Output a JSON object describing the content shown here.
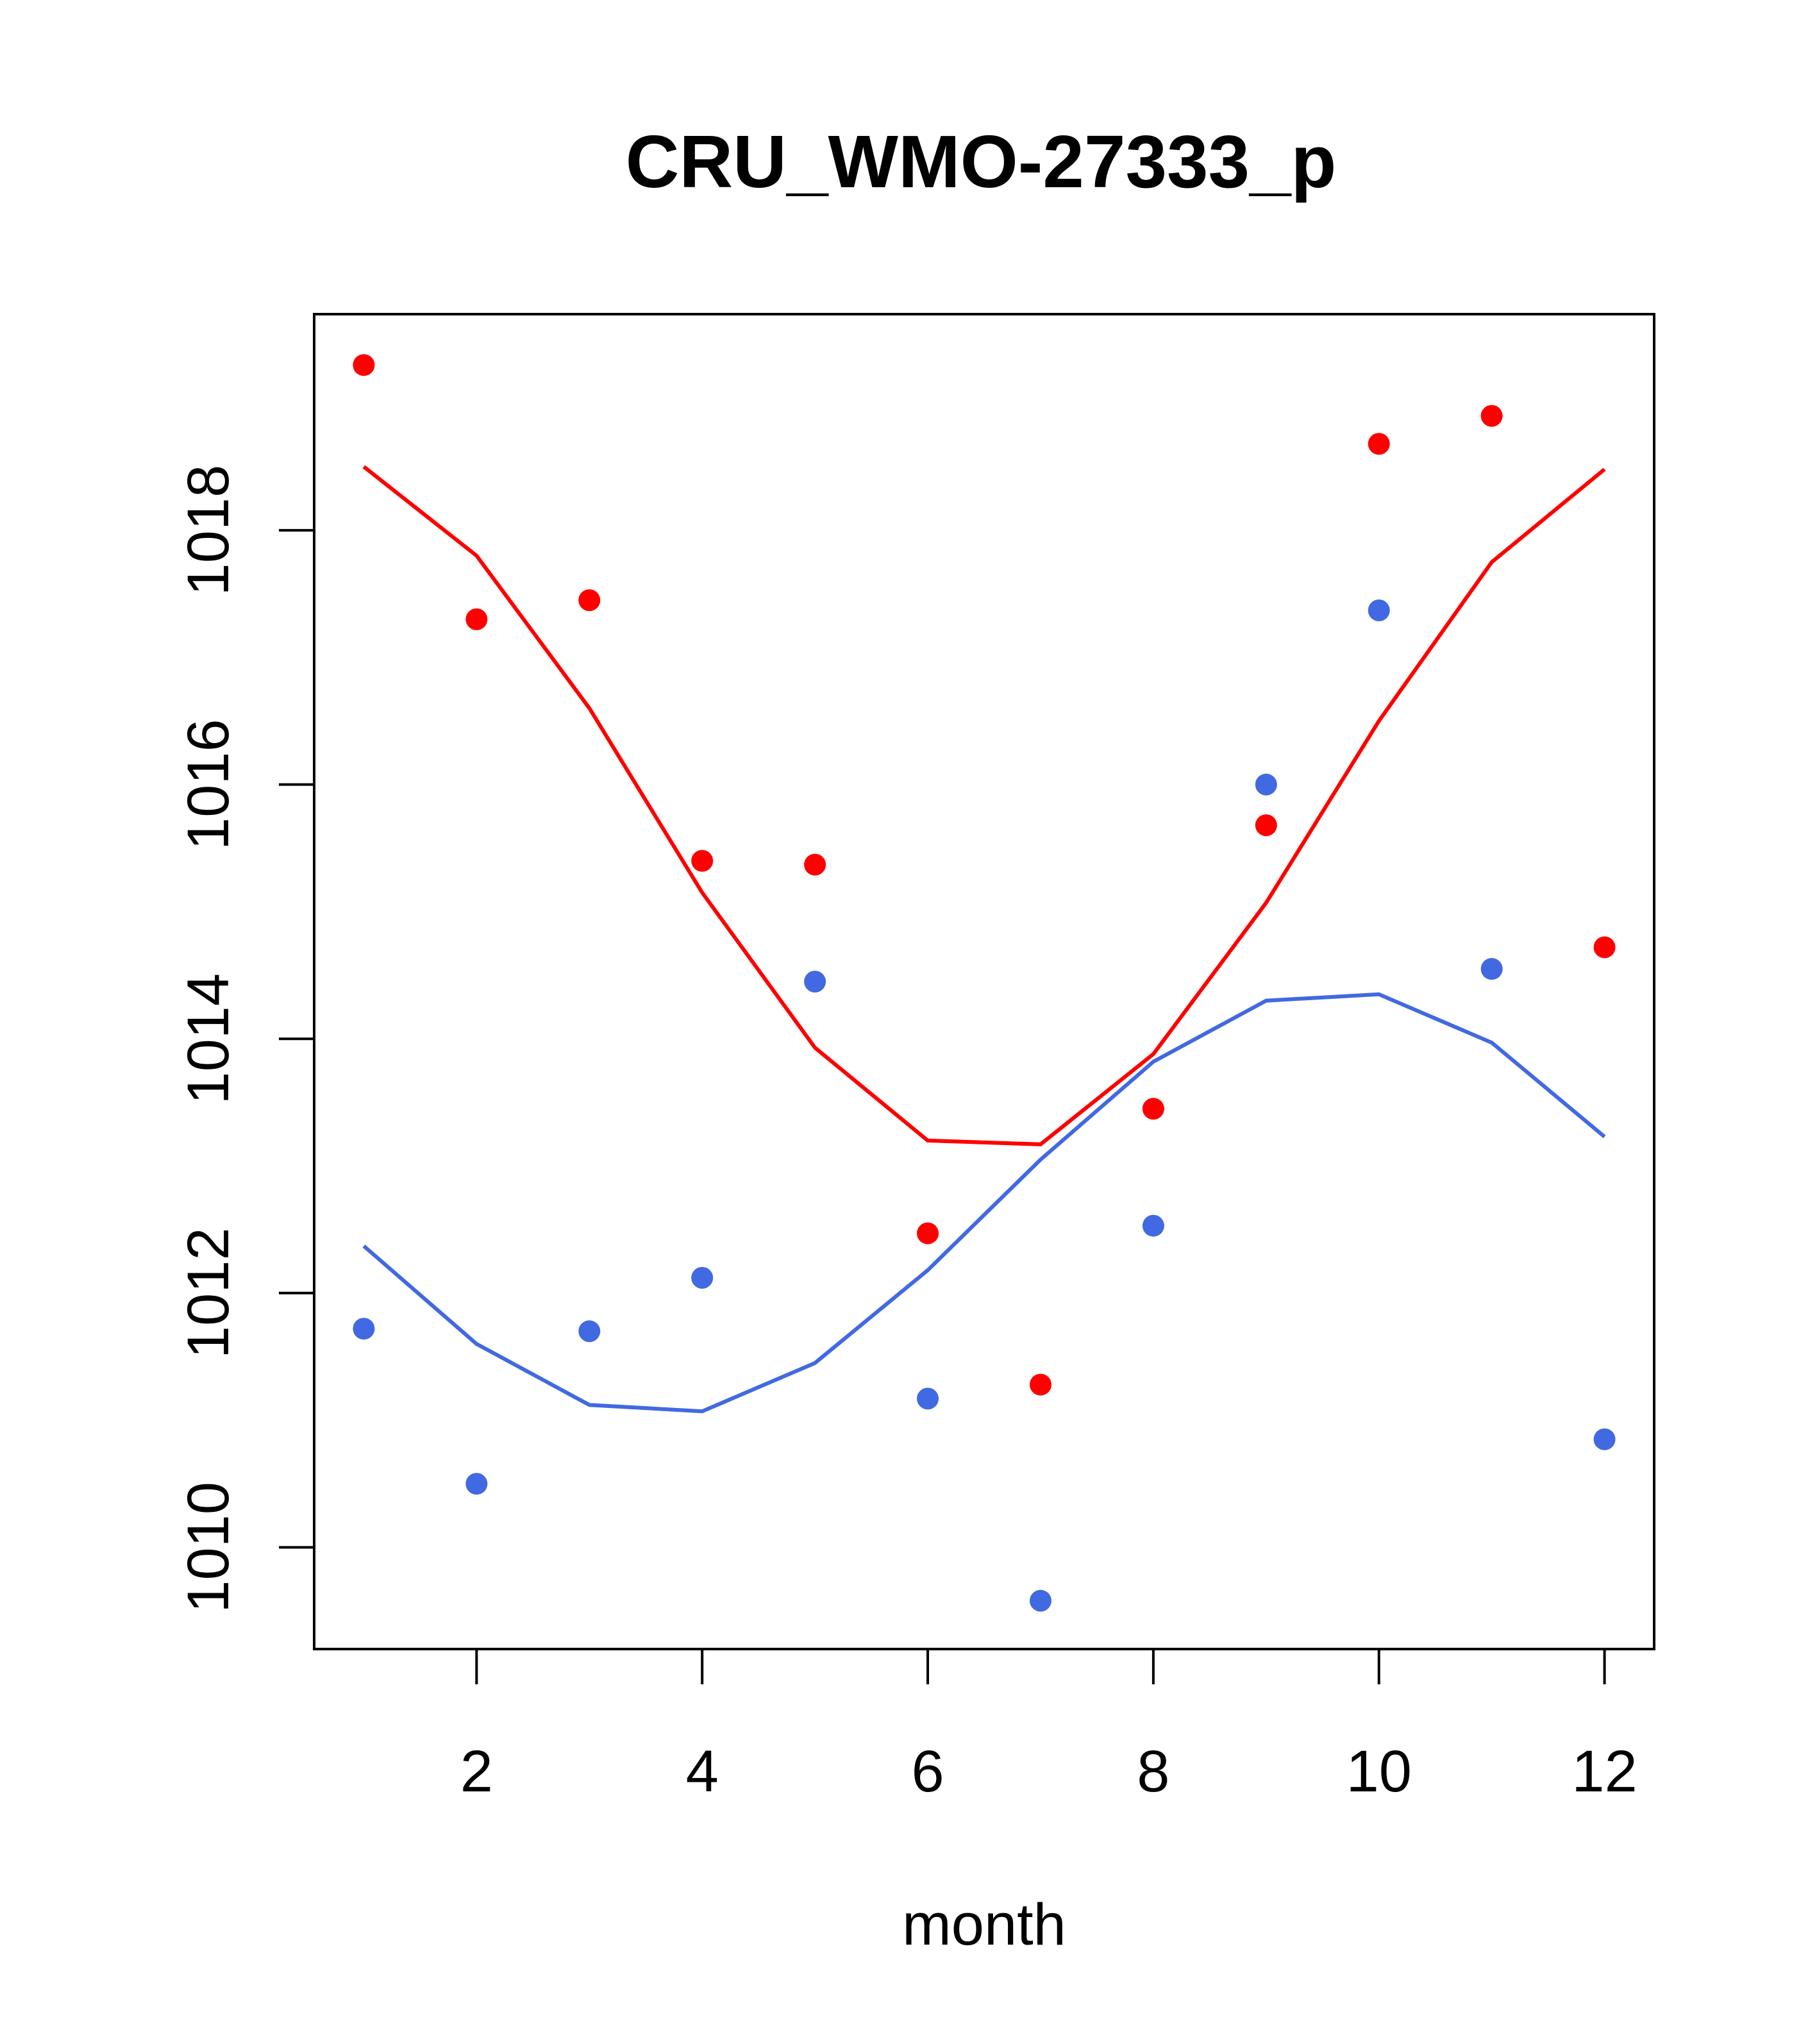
{
  "chart_data": {
    "type": "line",
    "title": "CRU_WMO-27333_p",
    "xlabel": "month",
    "ylabel": "",
    "xlim": [
      0.56,
      12.44
    ],
    "ylim": [
      1009.2,
      1019.7
    ],
    "xticks": [
      2,
      4,
      6,
      8,
      10,
      12
    ],
    "yticks": [
      1010,
      1012,
      1014,
      1016,
      1018
    ],
    "grid": false,
    "series": [
      {
        "color": "#ff0000",
        "x": [
          1,
          2,
          3,
          4,
          5,
          6,
          7,
          8,
          9,
          10,
          11,
          12
        ],
        "line": [
          1018.5,
          1017.8,
          1016.6,
          1015.15,
          1013.93,
          1013.2,
          1013.17,
          1013.88,
          1015.07,
          1016.5,
          1017.75,
          1018.48
        ],
        "points": [
          1019.3,
          1017.3,
          1017.45,
          1015.4,
          1015.37,
          1012.47,
          1011.28,
          1013.45,
          1015.68,
          1018.68,
          1018.9,
          1014.72
        ]
      },
      {
        "color": "#4169e1",
        "x": [
          1,
          2,
          3,
          4,
          5,
          6,
          7,
          8,
          9,
          10,
          11,
          12
        ],
        "line": [
          1012.37,
          1011.6,
          1011.12,
          1011.07,
          1011.45,
          1012.18,
          1013.05,
          1013.82,
          1014.3,
          1014.35,
          1013.97,
          1013.23
        ],
        "points": [
          1011.72,
          1010.5,
          1011.7,
          1012.12,
          1014.45,
          1011.17,
          1009.58,
          1012.53,
          1016.0,
          1017.37,
          1014.55,
          1010.85
        ]
      }
    ]
  }
}
